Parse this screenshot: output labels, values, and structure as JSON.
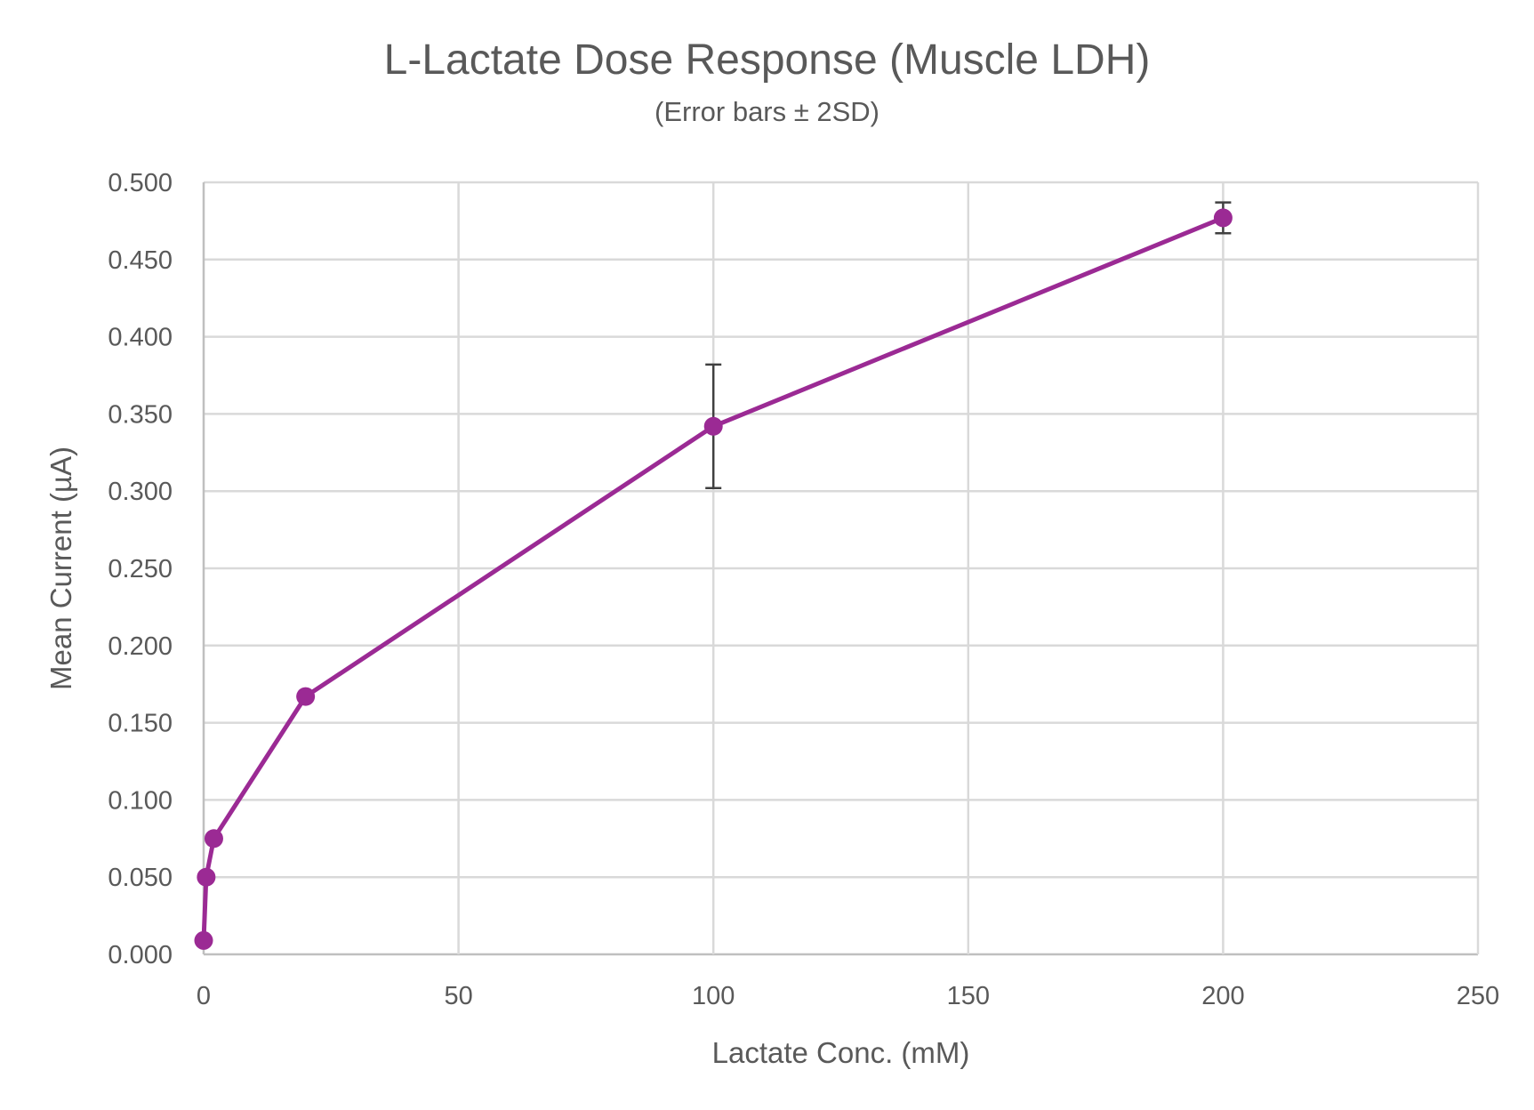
{
  "chart_data": {
    "type": "line",
    "title": "L-Lactate Dose Response (Muscle LDH)",
    "subtitle": "(Error bars ± 2SD)",
    "xlabel": "Lactate Conc. (mM)",
    "ylabel": "Mean Current (µA)",
    "xlim": [
      0,
      250
    ],
    "ylim": [
      0,
      0.5
    ],
    "xticks": [
      "0",
      "50",
      "100",
      "150",
      "200",
      "250"
    ],
    "yticks": [
      "0.000",
      "0.050",
      "0.100",
      "0.150",
      "0.200",
      "0.250",
      "0.300",
      "0.350",
      "0.400",
      "0.450",
      "0.500"
    ],
    "grid": true,
    "series": [
      {
        "name": "Mean Current",
        "color": "#9B2A94",
        "x": [
          0,
          0.5,
          2,
          20,
          100,
          200
        ],
        "y": [
          0.009,
          0.05,
          0.075,
          0.167,
          0.342,
          0.477
        ],
        "error": [
          0.001,
          0.001,
          0.002,
          0.002,
          0.04,
          0.01
        ]
      }
    ]
  }
}
